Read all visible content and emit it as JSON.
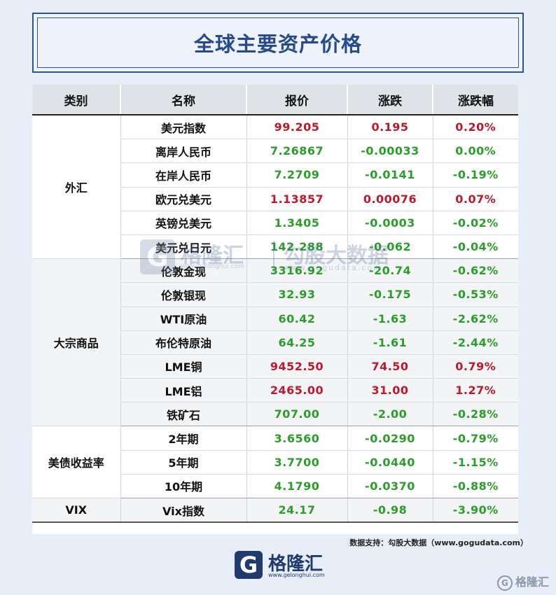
{
  "title": "全球主要资产价格",
  "headers": [
    "类别",
    "名称",
    "报价",
    "涨跌",
    "涨跌幅"
  ],
  "groups": {
    "fx": {
      "category": "外汇",
      "rows": [
        {
          "name": "美元指数",
          "price": "99.205",
          "change": "0.195",
          "pct": "0.20%",
          "dir": "up"
        },
        {
          "name": "离岸人民币",
          "price": "7.26867",
          "change": "-0.00033",
          "pct": "0.00%",
          "dir": "down"
        },
        {
          "name": "在岸人民币",
          "price": "7.2709",
          "change": "-0.0141",
          "pct": "-0.19%",
          "dir": "down"
        },
        {
          "name": "欧元兑美元",
          "price": "1.13857",
          "change": "0.00076",
          "pct": "0.07%",
          "dir": "up"
        },
        {
          "name": "英镑兑美元",
          "price": "1.3405",
          "change": "-0.0003",
          "pct": "-0.02%",
          "dir": "down"
        },
        {
          "name": "美元兑日元",
          "price": "142.288",
          "change": "-0.062",
          "pct": "-0.04%",
          "dir": "down"
        }
      ]
    },
    "commodities": {
      "category": "大宗商品",
      "rows": [
        {
          "name": "伦敦金现",
          "price": "3316.92",
          "change": "-20.74",
          "pct": "-0.62%",
          "dir": "down"
        },
        {
          "name": "伦敦银现",
          "price": "32.93",
          "change": "-0.175",
          "pct": "-0.53%",
          "dir": "down"
        },
        {
          "name": "WTI原油",
          "price": "60.42",
          "change": "-1.63",
          "pct": "-2.62%",
          "dir": "down"
        },
        {
          "name": "布伦特原油",
          "price": "64.25",
          "change": "-1.61",
          "pct": "-2.44%",
          "dir": "down"
        },
        {
          "name": "LME铜",
          "price": "9452.50",
          "change": "74.50",
          "pct": "0.79%",
          "dir": "up"
        },
        {
          "name": "LME铝",
          "price": "2465.00",
          "change": "31.00",
          "pct": "1.27%",
          "dir": "up"
        },
        {
          "name": "铁矿石",
          "price": "707.00",
          "change": "-2.00",
          "pct": "-0.28%",
          "dir": "down"
        }
      ]
    },
    "bonds": {
      "category": "美债收益率",
      "rows": [
        {
          "name": "2年期",
          "price": "3.6560",
          "change": "-0.0290",
          "pct": "-0.79%",
          "dir": "down"
        },
        {
          "name": "5年期",
          "price": "3.7700",
          "change": "-0.0440",
          "pct": "-1.15%",
          "dir": "down"
        },
        {
          "name": "10年期",
          "price": "4.1790",
          "change": "-0.0370",
          "pct": "-0.88%",
          "dir": "down"
        }
      ]
    },
    "vix": {
      "category": "VIX",
      "rows": [
        {
          "name": "Vix指数",
          "price": "24.17",
          "change": "-0.98",
          "pct": "-3.90%",
          "dir": "down"
        }
      ]
    }
  },
  "source_note": "数据支持：勾股大数据（www.gogudata.com）",
  "watermark": {
    "brand": "格隆汇",
    "brand_url": "www.gelonghui.com",
    "data_brand": "勾股大数据",
    "data_url": "www.gogudata.com"
  },
  "logo": {
    "name": "格隆汇",
    "url": "www.gelonghui.com"
  },
  "corner_brand": "格隆汇",
  "colors": {
    "up": "#c0182b",
    "down": "#2a9d2a",
    "title": "#264a8c"
  }
}
